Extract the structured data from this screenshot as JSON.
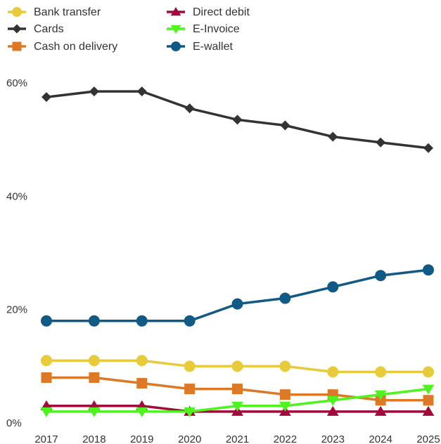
{
  "chart_data": {
    "type": "line",
    "title": "",
    "xlabel": "",
    "ylabel": "",
    "x": [
      2017,
      2018,
      2019,
      2020,
      2021,
      2022,
      2023,
      2024,
      2025
    ],
    "x_tick_labels": [
      "2017",
      "2018",
      "2019",
      "2020",
      "2021",
      "2022",
      "2023",
      "2024",
      "2025"
    ],
    "ylim": [
      0,
      60
    ],
    "y_ticks": [
      0,
      20,
      40,
      60
    ],
    "y_tick_labels": [
      "0%",
      "20%",
      "40%",
      "60%"
    ],
    "grid": false,
    "legend_position": "top-left",
    "series": [
      {
        "name": "Bank transfer",
        "color": "#e8cb3c",
        "marker": "circle",
        "values": [
          11,
          11,
          11,
          10,
          10,
          10,
          9,
          9,
          9
        ]
      },
      {
        "name": "Cards",
        "color": "#333333",
        "marker": "diamond",
        "values": [
          57.5,
          58.5,
          58.5,
          55.5,
          53.5,
          52.5,
          50.5,
          49.5,
          48.5
        ]
      },
      {
        "name": "Cash on delivery",
        "color": "#dc7826",
        "marker": "square",
        "values": [
          8,
          8,
          7,
          6,
          6,
          5,
          5,
          4,
          4
        ]
      },
      {
        "name": "Direct debit",
        "color": "#a10b3b",
        "marker": "triangle-up",
        "values": [
          3,
          3,
          3,
          2,
          2,
          2,
          2,
          2,
          2
        ]
      },
      {
        "name": "E-Invoice",
        "color": "#4ef320",
        "marker": "triangle-down",
        "values": [
          2,
          2,
          2,
          2,
          3,
          3,
          4,
          5,
          6
        ]
      },
      {
        "name": "E-wallet",
        "color": "#115a86",
        "marker": "circle",
        "values": [
          18,
          18,
          18,
          18,
          21,
          22,
          24,
          26,
          27
        ]
      }
    ]
  }
}
